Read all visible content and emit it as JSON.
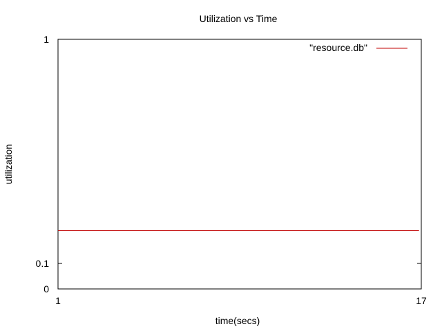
{
  "chart_data": {
    "type": "line",
    "title": "Utilization vs Time",
    "xlabel": "time(secs)",
    "ylabel": "utilization",
    "xlim": [
      1,
      17
    ],
    "ylim": [
      0,
      1
    ],
    "x_ticks": [
      {
        "value": 1,
        "label": "1"
      },
      {
        "value": 17,
        "label": "17"
      }
    ],
    "y_ticks": [
      {
        "value": 0,
        "label": "0"
      },
      {
        "value": 0.1,
        "label": "0.1"
      },
      {
        "value": 1,
        "label": "1"
      }
    ],
    "series": [
      {
        "name": "\"resource.db\"",
        "color": "#c00000",
        "x": [
          1,
          16.9
        ],
        "y": [
          0.14,
          0.14
        ]
      }
    ],
    "legend_position": "top-right",
    "grid": false
  }
}
